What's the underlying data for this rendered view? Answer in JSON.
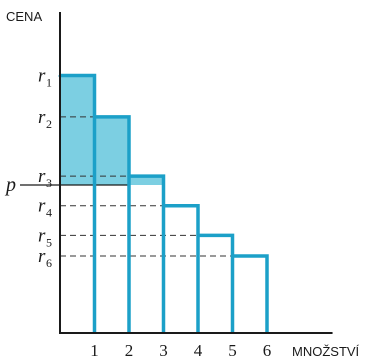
{
  "chart_data": {
    "type": "bar",
    "ylabel": "CENA",
    "xlabel": "MNOŽSTVÍ",
    "categories": [
      "1",
      "2",
      "3",
      "4",
      "5",
      "6"
    ],
    "values": [
      8.7,
      7.3,
      5.3,
      4.3,
      3.3,
      2.6
    ],
    "price_levels": [
      {
        "label": "r",
        "sub": "1"
      },
      {
        "label": "r",
        "sub": "2"
      },
      {
        "label": "r",
        "sub": "3"
      },
      {
        "label": "r",
        "sub": "4"
      },
      {
        "label": "r",
        "sub": "5"
      },
      {
        "label": "r",
        "sub": "6"
      }
    ],
    "price_line": {
      "label": "p",
      "value": 5.0
    },
    "xlim": [
      0,
      7.9
    ],
    "ylim": [
      0,
      9.7
    ],
    "colors": {
      "bars": "#1ca0c8",
      "surplus": "#7ccfe2",
      "axes": "#1a1a1a",
      "dashes": "#333333"
    }
  }
}
